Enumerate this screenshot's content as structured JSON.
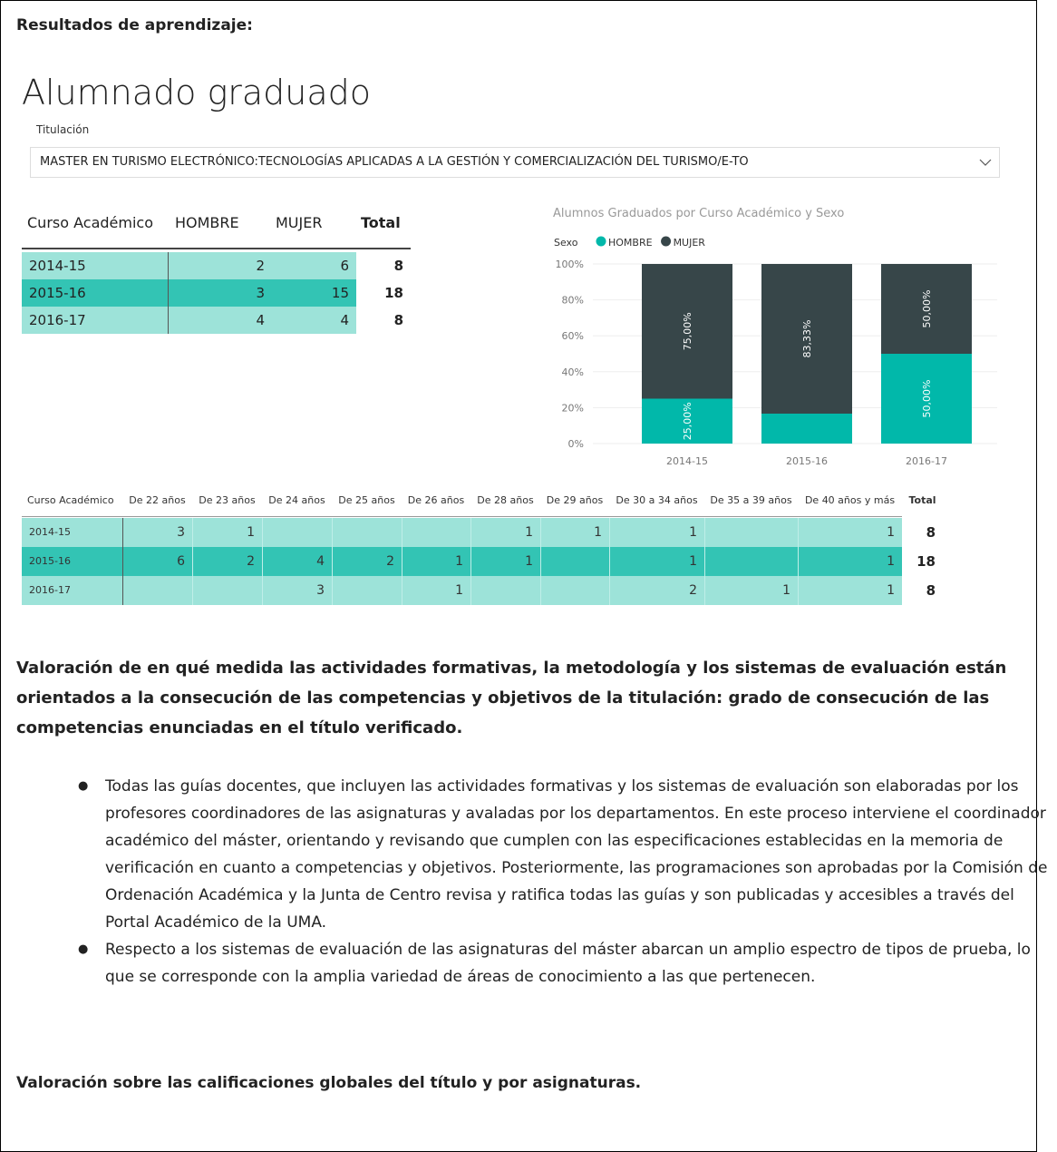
{
  "heading": "Resultados de aprendizaje:",
  "dashboard": {
    "title": "Alumnado graduado",
    "filter_label": "Titulación",
    "filter_value": "MASTER EN TURISMO ELECTRÓNICO:TECNOLOGÍAS APLICADAS A LA GESTIÓN Y COMERCIALIZACIÓN DEL TURISMO/E-TO"
  },
  "table1": {
    "header": [
      "Curso Académico",
      "HOMBRE",
      "MUJER",
      "Total"
    ],
    "rows": [
      [
        "2014-15",
        2,
        6,
        8
      ],
      [
        "2015-16",
        3,
        15,
        18
      ],
      [
        "2016-17",
        4,
        4,
        8
      ]
    ]
  },
  "chart_data": {
    "type": "bar",
    "stacked": true,
    "title": "Alumnos Graduados por Curso Académico y Sexo",
    "legend_title": "Sexo",
    "legend": "top-left",
    "categories": [
      "2014-15",
      "2015-16",
      "2016-17"
    ],
    "series": [
      {
        "name": "HOMBRE",
        "color": "#01b8aa",
        "values": [
          25,
          16.67,
          50
        ],
        "value_labels": [
          "25,00%",
          null,
          "50,00%"
        ]
      },
      {
        "name": "MUJER",
        "color": "#374649",
        "values": [
          75,
          83.33,
          50
        ],
        "value_labels": [
          "75,00%",
          "83,33%",
          "50,00%"
        ]
      }
    ],
    "ylim": [
      0,
      100
    ],
    "yticks": [
      {
        "value": 0,
        "label": "0%"
      },
      {
        "value": 20,
        "label": "20%"
      },
      {
        "value": 40,
        "label": "40%"
      },
      {
        "value": 60,
        "label": "60%"
      },
      {
        "value": 80,
        "label": "80%"
      },
      {
        "value": 100,
        "label": "100%"
      }
    ],
    "grid": true
  },
  "table2": {
    "header": [
      "Curso Académico",
      "De 22 años",
      "De 23 años",
      "De 24 años",
      "De 25 años",
      "De 26 años",
      "De 28 años",
      "De 29 años",
      "De 30 a 34 años",
      "De 35 a 39 años",
      "De 40 años y más",
      "Total"
    ],
    "rows": [
      [
        "2014-15",
        3,
        1,
        null,
        null,
        null,
        1,
        1,
        1,
        null,
        1,
        8
      ],
      [
        "2015-16",
        6,
        2,
        4,
        2,
        1,
        1,
        null,
        1,
        null,
        1,
        18
      ],
      [
        "2016-17",
        null,
        null,
        3,
        null,
        1,
        null,
        null,
        2,
        1,
        1,
        8
      ]
    ]
  },
  "section1": {
    "title": "Valoración de en qué medida las actividades formativas, la metodología y los sistemas de evaluación están orientados a la consecución de las competencias y objetivos de la titulación: grado de consecución de las competencias enunciadas en el título verificado.",
    "bullets": [
      "Todas las guías docentes, que incluyen las actividades formativas y los sistemas de evaluación son elaboradas por los profesores coordinadores de las asignaturas y avaladas por los departamentos. En este proceso interviene el coordinador académico del máster, orientando y revisando que cumplen con las especificaciones establecidas en la memoria de verificación en cuanto a competencias y objetivos. Posteriormente, las programaciones son aprobadas por la Comisión de Ordenación Académica y la Junta de Centro revisa y ratifica todas las guías y son publicadas y accesibles a través del Portal Académico de la UMA.",
      "Respecto a los sistemas de evaluación de las asignaturas del máster abarcan un amplio espectro de tipos de prueba, lo que se corresponde con la amplia variedad de áreas de conocimiento a las que pertenecen."
    ]
  },
  "section2": {
    "title": "Valoración sobre las calificaciones globales del título y por asignaturas."
  }
}
